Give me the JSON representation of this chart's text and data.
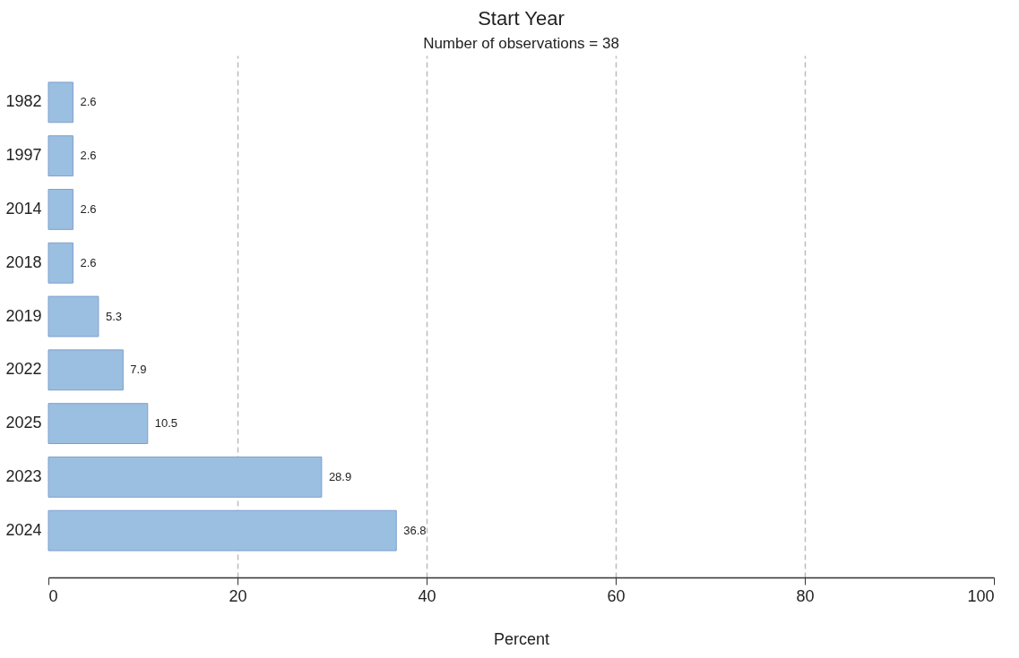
{
  "chart_data": {
    "type": "bar",
    "orientation": "horizontal",
    "title": "Start Year",
    "subtitle": "Number of observations = 38",
    "xlabel": "Percent",
    "categories": [
      "1982",
      "1997",
      "2014",
      "2018",
      "2019",
      "2022",
      "2025",
      "2023",
      "2024"
    ],
    "values": [
      2.6,
      2.6,
      2.6,
      2.6,
      5.3,
      7.9,
      10.5,
      28.9,
      36.8
    ],
    "color": "#9bbfe0",
    "xlim": [
      0,
      100
    ],
    "xticks": [
      0,
      20,
      40,
      60,
      80,
      100
    ],
    "grid": "x",
    "line_style": "dashed",
    "data_labels": true
  }
}
